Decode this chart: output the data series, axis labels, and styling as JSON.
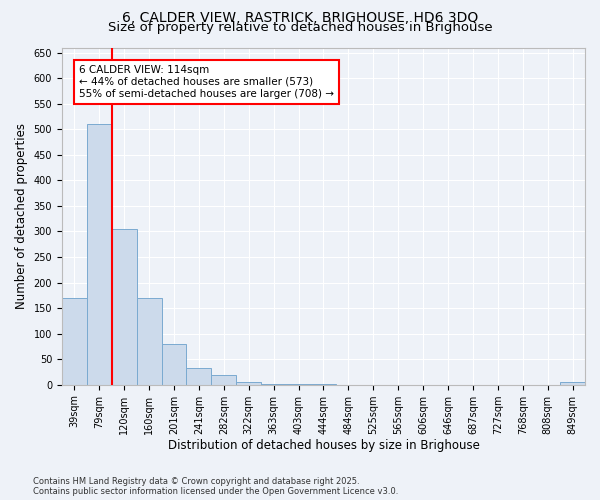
{
  "title_line1": "6, CALDER VIEW, RASTRICK, BRIGHOUSE, HD6 3DQ",
  "title_line2": "Size of property relative to detached houses in Brighouse",
  "xlabel": "Distribution of detached houses by size in Brighouse",
  "ylabel": "Number of detached properties",
  "categories": [
    "39sqm",
    "79sqm",
    "120sqm",
    "160sqm",
    "201sqm",
    "241sqm",
    "282sqm",
    "322sqm",
    "363sqm",
    "403sqm",
    "444sqm",
    "484sqm",
    "525sqm",
    "565sqm",
    "606sqm",
    "646sqm",
    "687sqm",
    "727sqm",
    "768sqm",
    "808sqm",
    "849sqm"
  ],
  "values": [
    170,
    510,
    305,
    170,
    80,
    33,
    20,
    5,
    2,
    1,
    1,
    0,
    0,
    0,
    0,
    0,
    0,
    0,
    0,
    0,
    5
  ],
  "bar_color": "#ccdaeb",
  "bar_edge_color": "#7aaad0",
  "vline_x": 1.5,
  "vline_color": "red",
  "annotation_text": "6 CALDER VIEW: 114sqm\n← 44% of detached houses are smaller (573)\n55% of semi-detached houses are larger (708) →",
  "annotation_box_color": "white",
  "annotation_box_edge_color": "red",
  "ylim": [
    0,
    660
  ],
  "yticks": [
    0,
    50,
    100,
    150,
    200,
    250,
    300,
    350,
    400,
    450,
    500,
    550,
    600,
    650
  ],
  "footnote": "Contains HM Land Registry data © Crown copyright and database right 2025.\nContains public sector information licensed under the Open Government Licence v3.0.",
  "background_color": "#eef2f8",
  "grid_color": "white",
  "title_fontsize": 10,
  "subtitle_fontsize": 9.5,
  "tick_fontsize": 7,
  "label_fontsize": 8.5,
  "footnote_fontsize": 6.0
}
